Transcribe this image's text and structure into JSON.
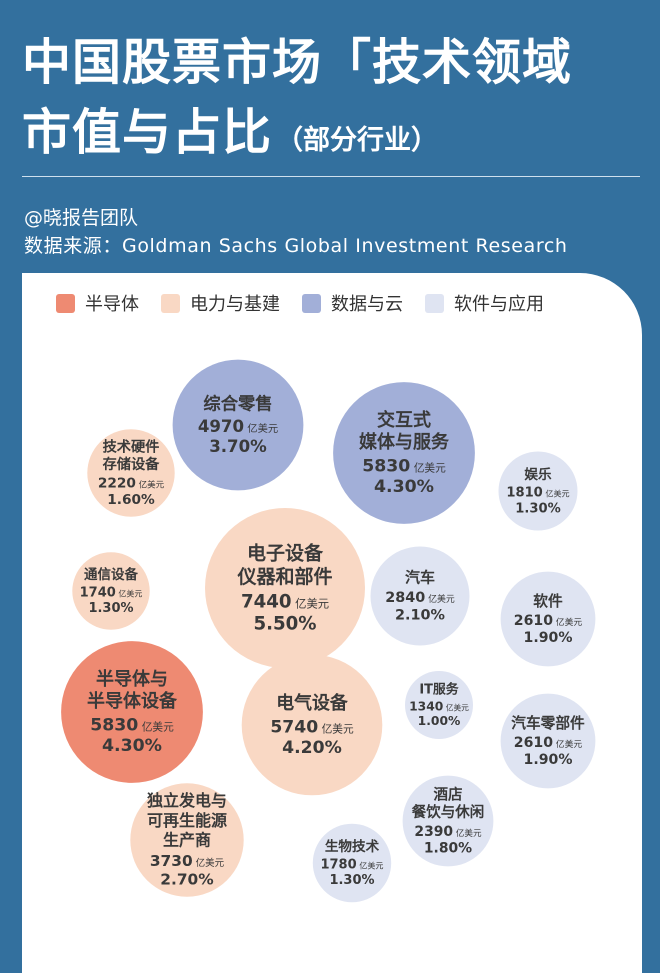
{
  "title_line1": "中国股票市场「技术领域",
  "title_line2": "市值与占比",
  "title_suffix": "（部分行业）",
  "author": "@晓报告团队",
  "source": "数据来源：Goldman Sachs Global Investment Research",
  "colors": {
    "semiconductor": "#ee8a72",
    "power": "#f9d8c4",
    "data_cloud": "#a2afd8",
    "software": "#dfe4f2"
  },
  "chart_data": {
    "type": "bubble",
    "unit": "亿美元",
    "legend": [
      {
        "key": "semiconductor",
        "label": "半导体"
      },
      {
        "key": "power",
        "label": "电力与基建"
      },
      {
        "key": "data_cloud",
        "label": "数据与云"
      },
      {
        "key": "software",
        "label": "软件与应用"
      }
    ],
    "bubbles": [
      {
        "name": [
          "综合零售"
        ],
        "value": 4970,
        "pct": "3.70%",
        "group": "data_cloud"
      },
      {
        "name": [
          "交互式",
          "媒体与服务"
        ],
        "value": 5830,
        "pct": "4.30%",
        "group": "data_cloud"
      },
      {
        "name": [
          "技术硬件",
          "存储设备"
        ],
        "value": 2220,
        "pct": "1.60%",
        "group": "power"
      },
      {
        "name": [
          "娱乐"
        ],
        "value": 1810,
        "pct": "1.30%",
        "group": "software"
      },
      {
        "name": [
          "电子设备",
          "仪器和部件"
        ],
        "value": 7440,
        "pct": "5.50%",
        "group": "power"
      },
      {
        "name": [
          "通信设备"
        ],
        "value": 1740,
        "pct": "1.30%",
        "group": "power"
      },
      {
        "name": [
          "汽车"
        ],
        "value": 2840,
        "pct": "2.10%",
        "group": "software"
      },
      {
        "name": [
          "软件"
        ],
        "value": 2610,
        "pct": "1.90%",
        "group": "software"
      },
      {
        "name": [
          "半导体与",
          "半导体设备"
        ],
        "value": 5830,
        "pct": "4.30%",
        "group": "semiconductor"
      },
      {
        "name": [
          "电气设备"
        ],
        "value": 5740,
        "pct": "4.20%",
        "group": "power"
      },
      {
        "name": [
          "IT服务"
        ],
        "value": 1340,
        "pct": "1.00%",
        "group": "software"
      },
      {
        "name": [
          "汽车零部件"
        ],
        "value": 2610,
        "pct": "1.90%",
        "group": "software"
      },
      {
        "name": [
          "酒店",
          "餐饮与休闲"
        ],
        "value": 2390,
        "pct": "1.80%",
        "group": "software"
      },
      {
        "name": [
          "独立发电与",
          "可再生能源",
          "生产商"
        ],
        "value": 3730,
        "pct": "2.70%",
        "group": "power"
      },
      {
        "name": [
          "生物技术"
        ],
        "value": 1780,
        "pct": "1.30%",
        "group": "software"
      }
    ]
  }
}
